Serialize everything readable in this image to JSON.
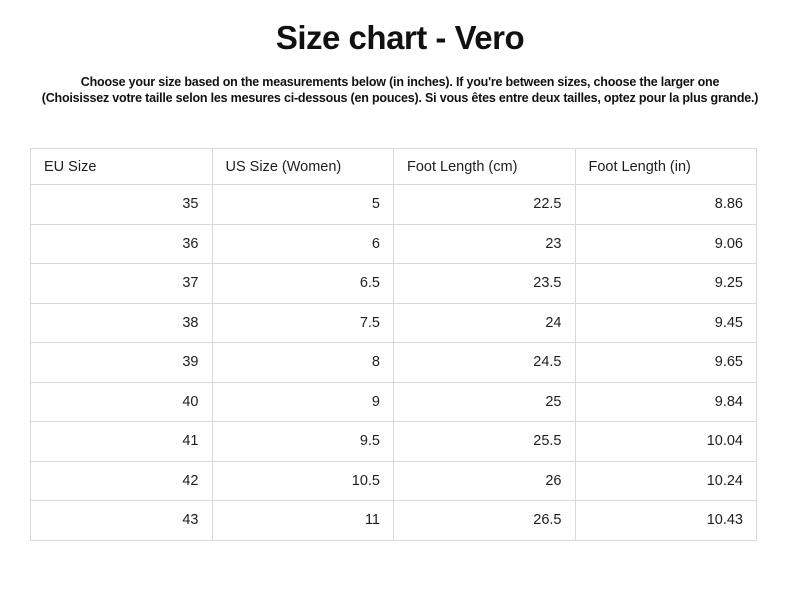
{
  "page": {
    "title": "Size chart - Vero",
    "subtitle_line1": "Choose your size based on the measurements below (in inches). If you're between sizes, choose the larger one",
    "subtitle_line2": "(Choisissez votre taille selon les mesures ci-dessous (en pouces). Si vous êtes entre deux tailles, optez pour la plus grande.)"
  },
  "chart_data": {
    "type": "table",
    "title": "Size chart - Vero",
    "columns": [
      "EU Size",
      "US Size (Women)",
      "Foot Length (cm)",
      "Foot Length (in)"
    ],
    "rows": [
      [
        35,
        5,
        22.5,
        8.86
      ],
      [
        36,
        6,
        23,
        9.06
      ],
      [
        37,
        6.5,
        23.5,
        9.25
      ],
      [
        38,
        7.5,
        24,
        9.45
      ],
      [
        39,
        8,
        24.5,
        9.65
      ],
      [
        40,
        9,
        25,
        9.84
      ],
      [
        41,
        9.5,
        25.5,
        10.04
      ],
      [
        42,
        10.5,
        26,
        10.24
      ],
      [
        43,
        11,
        26.5,
        10.43
      ]
    ]
  },
  "colors": {
    "background": "#ffffff",
    "text": "#111111",
    "table_text": "#202020",
    "table_border": "#d9d9d9"
  }
}
